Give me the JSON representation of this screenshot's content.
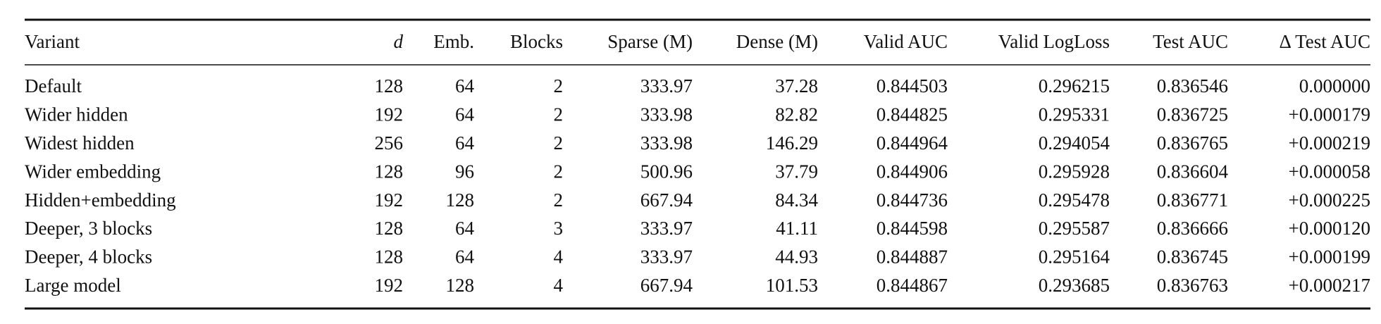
{
  "table": {
    "header": [
      "Variant",
      "d",
      "Emb.",
      "Blocks",
      "Sparse (M)",
      "Dense (M)",
      "Valid AUC",
      "Valid LogLoss",
      "Test AUC",
      "Δ Test AUC"
    ],
    "rows": [
      [
        "Default",
        "128",
        "64",
        "2",
        "333.97",
        "37.28",
        "0.844503",
        "0.296215",
        "0.836546",
        "0.000000"
      ],
      [
        "Wider hidden",
        "192",
        "64",
        "2",
        "333.98",
        "82.82",
        "0.844825",
        "0.295331",
        "0.836725",
        "+0.000179"
      ],
      [
        "Widest hidden",
        "256",
        "64",
        "2",
        "333.98",
        "146.29",
        "0.844964",
        "0.294054",
        "0.836765",
        "+0.000219"
      ],
      [
        "Wider embedding",
        "128",
        "96",
        "2",
        "500.96",
        "37.79",
        "0.844906",
        "0.295928",
        "0.836604",
        "+0.000058"
      ],
      [
        "Hidden+embedding",
        "192",
        "128",
        "2",
        "667.94",
        "84.34",
        "0.844736",
        "0.295478",
        "0.836771",
        "+0.000225"
      ],
      [
        "Deeper, 3 blocks",
        "128",
        "64",
        "3",
        "333.97",
        "41.11",
        "0.844598",
        "0.295587",
        "0.836666",
        "+0.000120"
      ],
      [
        "Deeper, 4 blocks",
        "128",
        "64",
        "4",
        "333.97",
        "44.93",
        "0.844887",
        "0.295164",
        "0.836745",
        "+0.000199"
      ],
      [
        "Large model",
        "192",
        "128",
        "4",
        "667.94",
        "101.53",
        "0.844867",
        "0.293685",
        "0.836763",
        "+0.000217"
      ]
    ]
  }
}
